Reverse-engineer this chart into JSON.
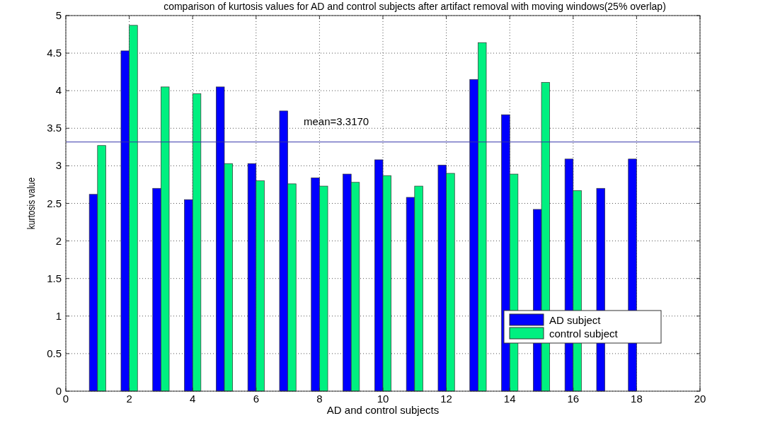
{
  "chart_data": {
    "type": "bar",
    "title": "comparison of kurtosis values for AD and control subjects after artifact removal with moving windows(25% overlap)",
    "xlabel": "AD and control subjects",
    "ylabel": "kurtosis value",
    "x": [
      1,
      2,
      3,
      4,
      5,
      6,
      7,
      8,
      9,
      10,
      11,
      12,
      13,
      14,
      15,
      16,
      17,
      18
    ],
    "series": [
      {
        "name": "AD subject",
        "color": "#0000ff",
        "values": [
          2.62,
          4.53,
          2.7,
          2.55,
          4.05,
          3.03,
          3.73,
          2.84,
          2.89,
          3.08,
          2.58,
          3.01,
          4.15,
          3.68,
          2.42,
          3.09,
          2.7,
          3.09
        ]
      },
      {
        "name": "control subject",
        "color": "#00f080",
        "values": [
          3.27,
          4.87,
          4.05,
          3.96,
          3.03,
          2.8,
          2.76,
          2.73,
          2.78,
          2.87,
          2.73,
          2.9,
          4.64,
          2.89,
          4.11,
          2.67,
          null,
          null
        ]
      }
    ],
    "xlim": [
      0,
      20
    ],
    "xticks": [
      0,
      2,
      4,
      6,
      8,
      10,
      12,
      14,
      16,
      18,
      20
    ],
    "ylim": [
      0,
      5
    ],
    "yticks": [
      0,
      0.5,
      1,
      1.5,
      2,
      2.5,
      3,
      3.5,
      4,
      4.5,
      5
    ],
    "ref_lines": [
      {
        "axis": "y",
        "value": 3.317,
        "label": "mean=3.3170",
        "color": "#3333aa"
      }
    ],
    "grid": true,
    "legend": "bottom right"
  }
}
